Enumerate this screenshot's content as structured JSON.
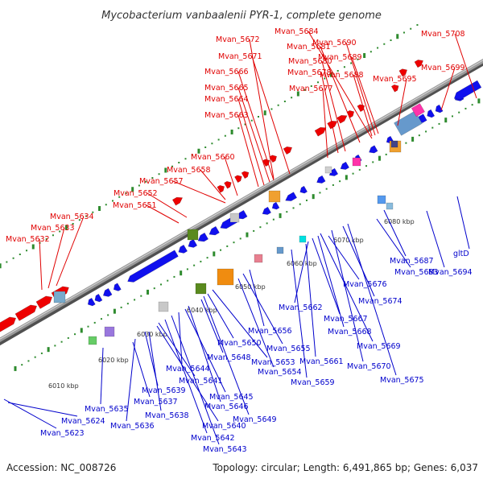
{
  "title": "Mycobacterium vanbaalenii PYR-1, complete genome",
  "accession": "Accession: NC_008726",
  "topology": "Topology: circular; Length: 6,491,865 bp; Genes: 6,037",
  "colors": {
    "forward_gene": "#ee0000",
    "reverse_gene": "#1010ee",
    "backbone": "#9a9a9a",
    "tick_dots": "#2e8b2e",
    "red_label": "#e00000",
    "blue_label": "#0000cc"
  },
  "ticks": [
    "6010 kbp",
    "6020 kbp",
    "6030 kbp",
    "6040 kbp",
    "6050 kbp",
    "6060 kbp",
    "6070 kbp",
    "6080 kbp"
  ],
  "red_labels": [
    "Mvan_5632",
    "Mvan_5633",
    "Mvan_5634",
    "Mvan_5651",
    "Mvan_5652",
    "Mvan_5657",
    "Mvan_5658",
    "Mvan_5660",
    "Mvan_5663",
    "Mvan_5664",
    "Mvan_5665",
    "Mvan_5666",
    "Mvan_5671",
    "Mvan_5672",
    "Mvan_5677",
    "Mvan_5678",
    "Mvan_5680",
    "Mvan_5681",
    "Mvan_5684",
    "Mvan_5688",
    "Mvan_5689",
    "Mvan_5690",
    "Mvan_5695",
    "Mvan_5699",
    "Mvan_5708"
  ],
  "blue_labels": [
    "Mvan_5623",
    "Mvan_5624",
    "Mvan_5635",
    "Mvan_5636",
    "Mvan_5637",
    "Mvan_5638",
    "Mvan_5639",
    "Mvan_5640",
    "Mvan_5641",
    "Mvan_5642",
    "Mvan_5643",
    "Mvan_5644",
    "Mvan_5645",
    "Mvan_5646",
    "Mvan_5648",
    "Mvan_5649",
    "Mvan_5650",
    "Mvan_5653",
    "Mvan_5654",
    "Mvan_5655",
    "Mvan_5656",
    "Mvan_5659",
    "Mvan_5661",
    "Mvan_5662",
    "Mvan_5667",
    "Mvan_5668",
    "Mvan_5669",
    "Mvan_5670",
    "Mvan_5674",
    "Mvan_5675",
    "Mvan_5676",
    "Mvan_5683",
    "Mvan_5687",
    "Mvan_5694",
    "gltD"
  ]
}
